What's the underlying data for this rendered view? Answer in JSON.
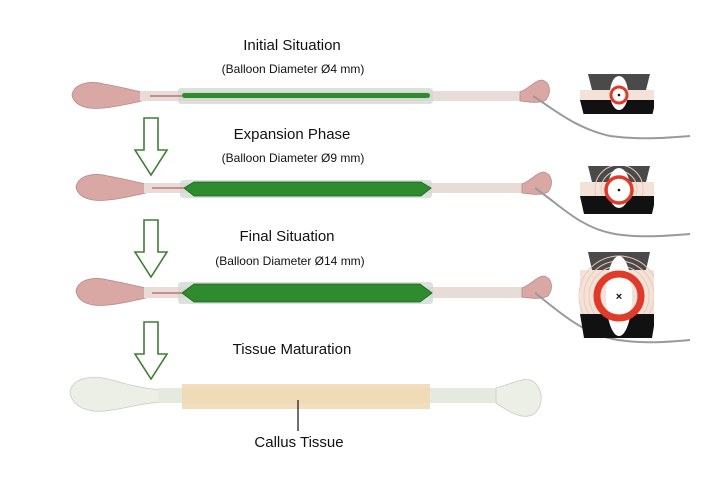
{
  "phases": [
    {
      "title": "Initial Situation",
      "subtitle": "(Balloon Diameter Ø4 mm)",
      "balloon_diameter_mm": 4
    },
    {
      "title": "Expansion Phase",
      "subtitle": "(Balloon Diameter Ø9 mm)",
      "balloon_diameter_mm": 9
    },
    {
      "title": "Final Situation",
      "subtitle": "(Balloon Diameter Ø14 mm)",
      "balloon_diameter_mm": 14
    },
    {
      "title": "Tissue Maturation",
      "subtitle": ""
    }
  ],
  "callus_label": "Callus Tissue",
  "colors": {
    "balloon_green": "#2e8b2e",
    "balloon_dark": "#1f5f1f",
    "sleeve": "#cfd8cf",
    "bone_pink": "#d9a8a4",
    "bone_white": "#ecefe6",
    "callus": "#f0d8b0",
    "arrow_green": "#3e7f35",
    "inset_ring": "#e03a2a",
    "inset_dark": "#4a4a4a",
    "inset_black": "#111111",
    "catheter": "#9a9a9a"
  },
  "icons": [
    "down-arrow-icon",
    "cross-section-icon"
  ]
}
